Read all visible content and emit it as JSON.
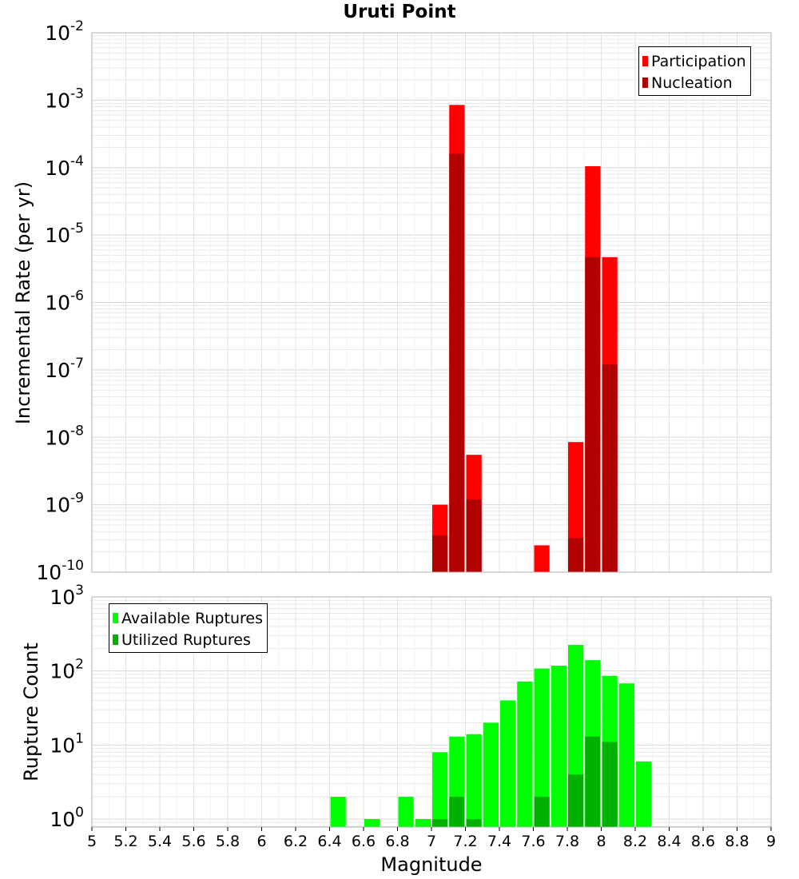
{
  "title": "Uruti Point",
  "xlabel": "Magnitude",
  "colors": {
    "participation": "#ff0000",
    "nucleation": "#b00000",
    "available": "#00ff00",
    "utilized": "#00b000",
    "grid": "#e8e8e8",
    "frame": "#b0b0b0"
  },
  "chart_data": [
    {
      "type": "bar",
      "panel": "top",
      "ylabel": "Incremental Rate (per yr)",
      "yscale": "log",
      "ylim": [
        1e-10,
        0.01
      ],
      "xlim": [
        5,
        9
      ],
      "bar_width": 0.1,
      "legend": {
        "placement": "top-right",
        "entries": [
          "Participation",
          "Nucleation"
        ]
      },
      "series": [
        {
          "name": "Participation",
          "x": [
            7.05,
            7.15,
            7.25,
            7.65,
            7.85,
            7.95,
            8.05
          ],
          "values": [
            1e-09,
            0.00085,
            5.5e-09,
            2.5e-10,
            8.5e-09,
            0.000105,
            4.7e-06
          ]
        },
        {
          "name": "Nucleation",
          "x": [
            7.05,
            7.15,
            7.25,
            7.85,
            7.95,
            8.05
          ],
          "values": [
            3.5e-10,
            0.00016,
            1.2e-09,
            3.2e-10,
            4.7e-06,
            1.2e-07
          ]
        }
      ]
    },
    {
      "type": "bar",
      "panel": "bottom",
      "ylabel": "Rupture Count",
      "yscale": "log",
      "ylim": [
        0.78,
        1000
      ],
      "xlim": [
        5,
        9
      ],
      "bar_width": 0.1,
      "legend": {
        "placement": "top-left",
        "entries": [
          "Available Ruptures",
          "Utilized Ruptures"
        ]
      },
      "series": [
        {
          "name": "Available Ruptures",
          "x": [
            6.45,
            6.65,
            6.85,
            6.95,
            7.05,
            7.15,
            7.25,
            7.35,
            7.45,
            7.55,
            7.65,
            7.75,
            7.85,
            7.95,
            8.05,
            8.15,
            8.25
          ],
          "values": [
            2,
            1,
            2,
            1,
            8,
            13,
            14,
            20,
            40,
            72,
            108,
            118,
            225,
            140,
            86,
            68,
            6
          ]
        },
        {
          "name": "Utilized Ruptures",
          "x": [
            7.05,
            7.15,
            7.25,
            7.65,
            7.85,
            7.95,
            8.05
          ],
          "values": [
            1,
            2,
            1,
            2,
            4,
            13,
            11
          ]
        }
      ]
    }
  ],
  "xticks": [
    "5",
    "5.2",
    "5.4",
    "5.6",
    "5.8",
    "6",
    "6.2",
    "6.4",
    "6.6",
    "6.8",
    "7",
    "7.2",
    "7.4",
    "7.6",
    "7.8",
    "8",
    "8.2",
    "8.4",
    "8.6",
    "8.8",
    "9"
  ],
  "top_yticks": [
    {
      "base": "10",
      "exp": "-2"
    },
    {
      "base": "10",
      "exp": "-3"
    },
    {
      "base": "10",
      "exp": "-4"
    },
    {
      "base": "10",
      "exp": "-5"
    },
    {
      "base": "10",
      "exp": "-6"
    },
    {
      "base": "10",
      "exp": "-7"
    },
    {
      "base": "10",
      "exp": "-8"
    },
    {
      "base": "10",
      "exp": "-9"
    },
    {
      "base": "10",
      "exp": "-10"
    }
  ],
  "bottom_yticks": [
    {
      "base": "10",
      "exp": "3"
    },
    {
      "base": "10",
      "exp": "2"
    },
    {
      "base": "10",
      "exp": "1"
    },
    {
      "base": "10",
      "exp": "0"
    }
  ]
}
